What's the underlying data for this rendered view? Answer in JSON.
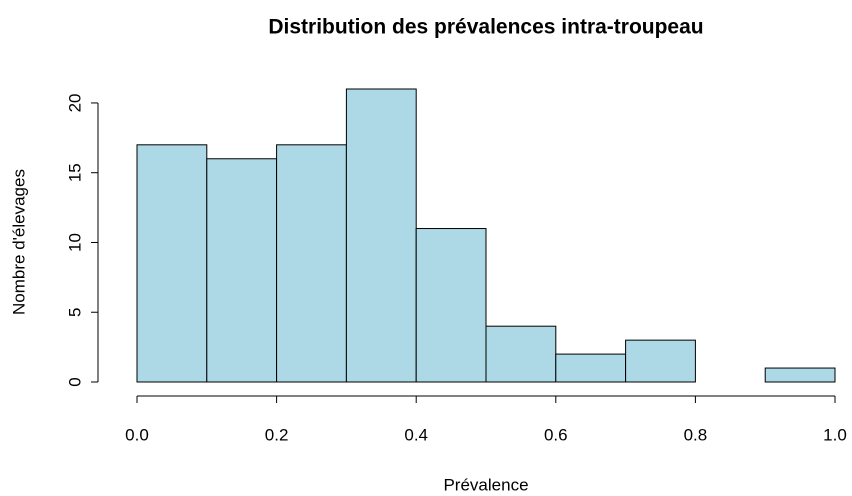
{
  "chart_data": {
    "type": "histogram",
    "title": "Distribution des prévalences intra-troupeau",
    "x_label": "Prévalence",
    "y_label": "Nombre d'élevages",
    "bins": [
      0,
      0.1,
      0.2,
      0.3,
      0.4,
      0.5,
      0.6,
      0.7,
      0.8,
      0.9,
      1
    ],
    "values": [
      17,
      16,
      17,
      21,
      11,
      4,
      2,
      3,
      0,
      1
    ],
    "color": "#add8e6",
    "edge_color": "#000000",
    "xlim": [
      0,
      1
    ],
    "xticks": [
      {
        "value": 0,
        "label": "0.0"
      },
      0.2,
      0.4,
      0.6,
      0.8,
      {
        "value": 1,
        "label": "1.0"
      }
    ],
    "ylim": [
      0,
      21
    ],
    "yticks": [
      0,
      5,
      10,
      15,
      20
    ],
    "grid": false
  }
}
